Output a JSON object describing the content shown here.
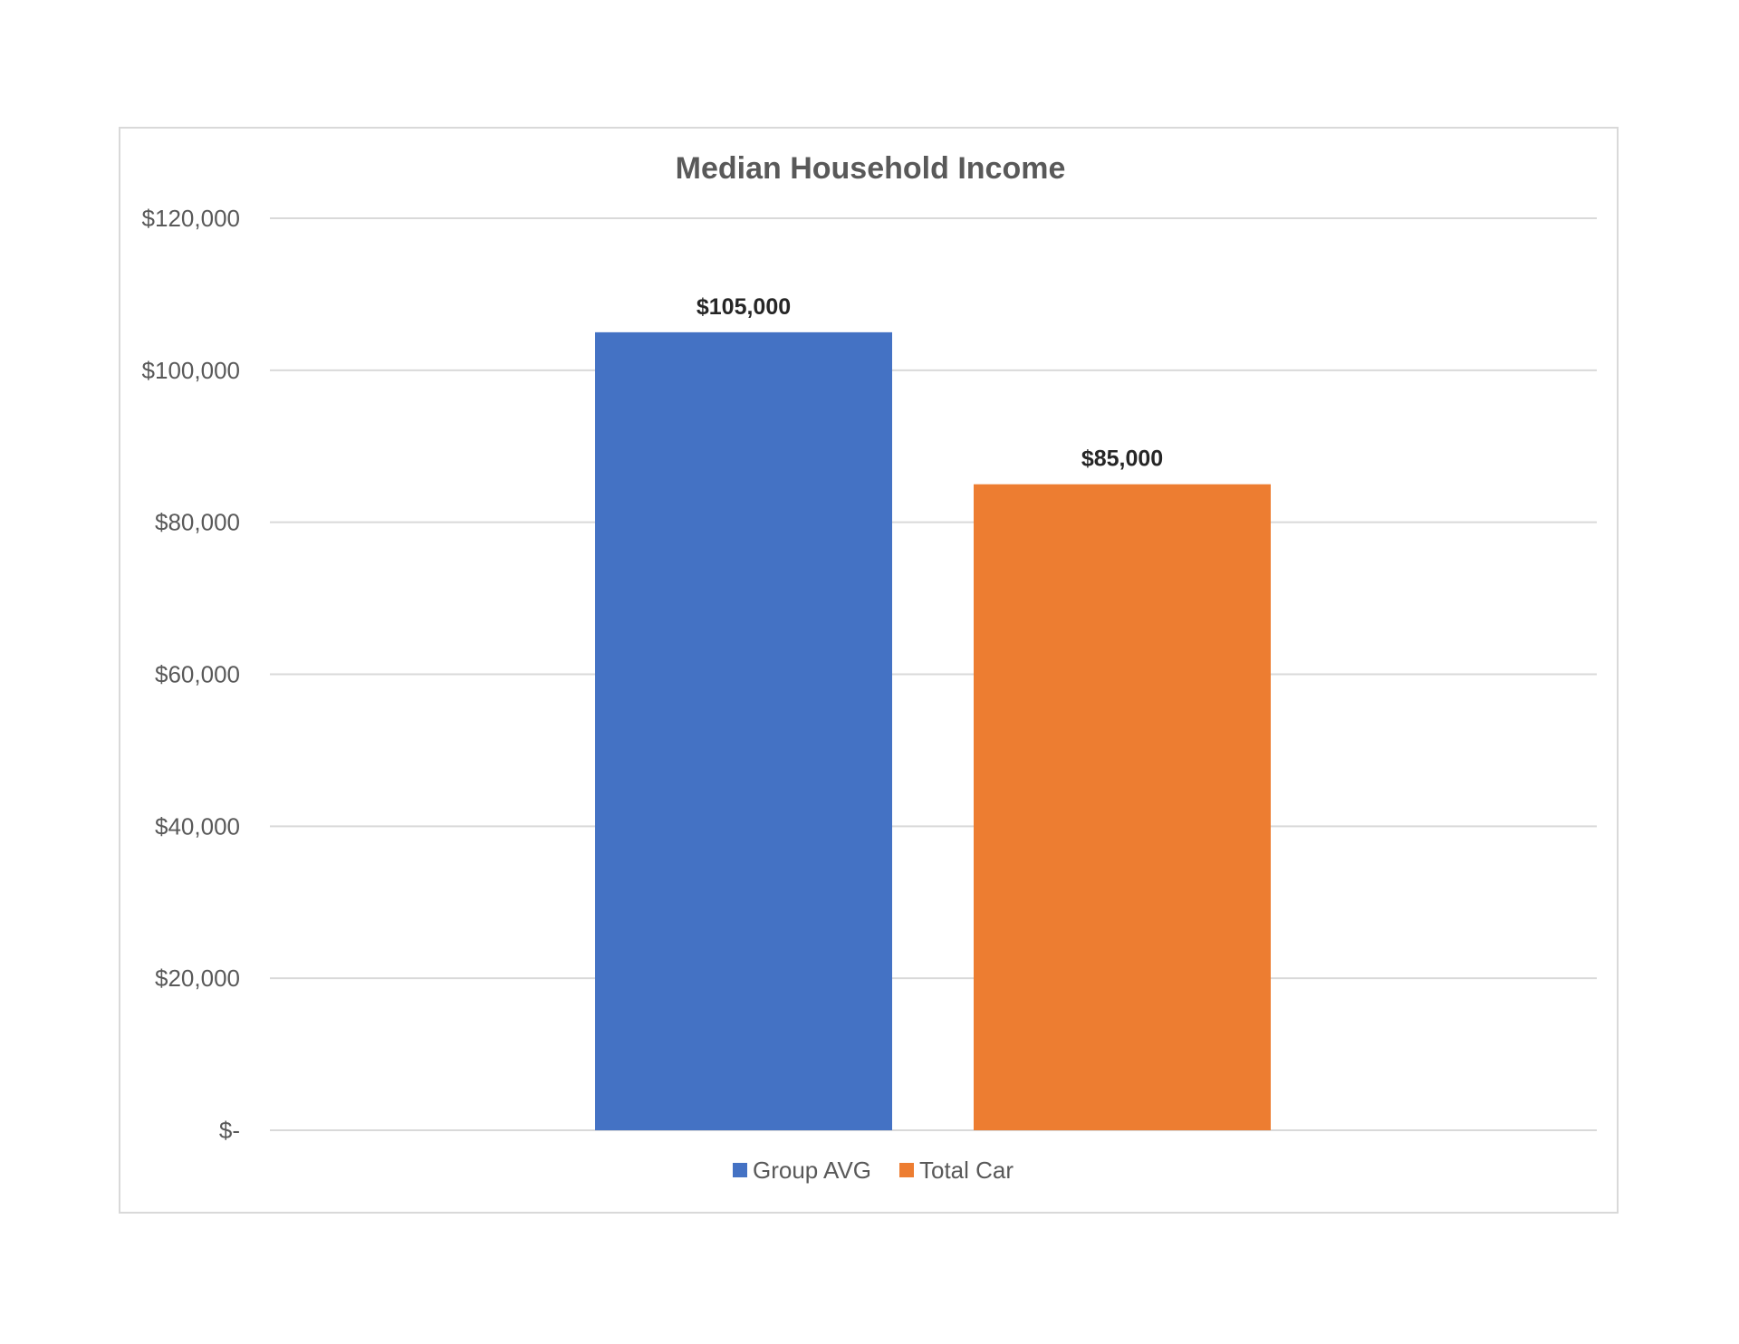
{
  "chart_data": {
    "type": "bar",
    "title": "Median Household Income",
    "xlabel": "",
    "ylabel": "",
    "categories": [
      ""
    ],
    "series": [
      {
        "name": "Group AVG",
        "values": [
          105000
        ],
        "color": "#4472c4",
        "data_label": "$105,000"
      },
      {
        "name": "Total Car",
        "values": [
          85000
        ],
        "color": "#ed7d31",
        "data_label": "$85,000"
      }
    ],
    "ylim": [
      0,
      120000
    ],
    "yticks": [
      0,
      20000,
      40000,
      60000,
      80000,
      100000,
      120000
    ],
    "ytick_labels": [
      "$-",
      "$20,000",
      "$40,000",
      "$60,000",
      "$80,000",
      "$100,000",
      "$120,000"
    ],
    "grid": true,
    "legend_position": "bottom"
  }
}
